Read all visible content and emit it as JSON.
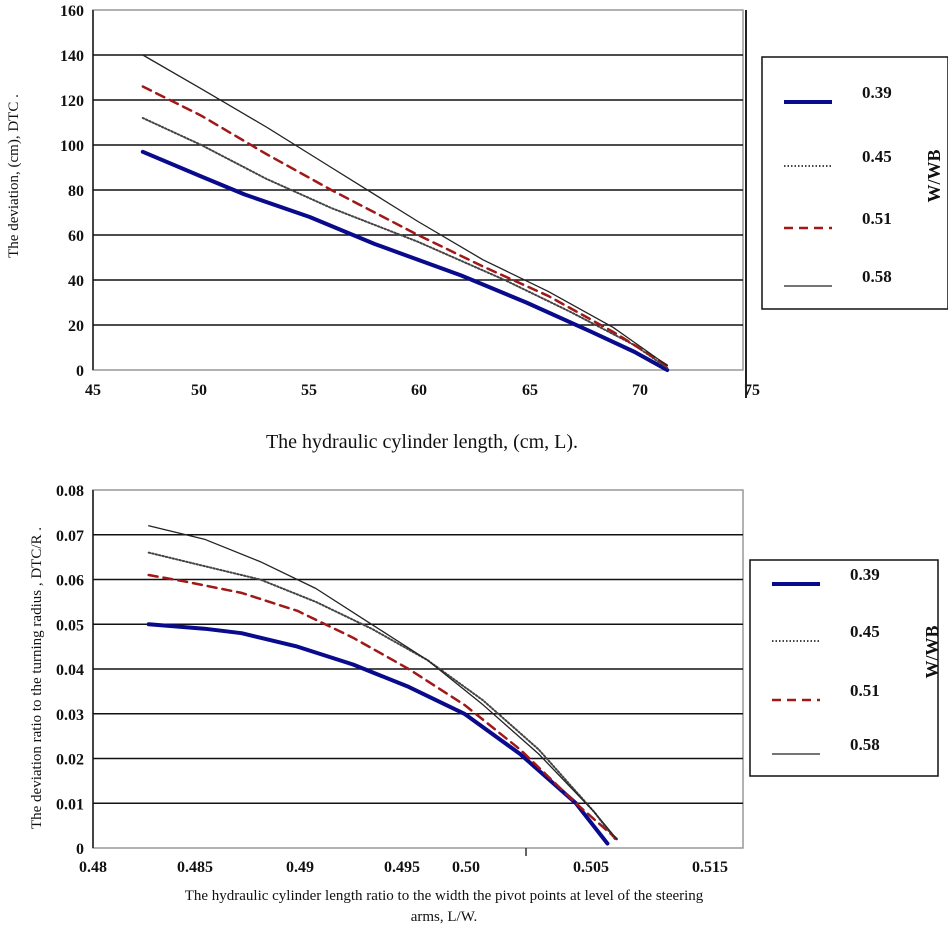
{
  "chart_data": [
    {
      "type": "line",
      "title": "",
      "xlabel": "The hydraulic cylinder length,  (cm, L).",
      "ylabel": "The deviation,  (cm), DTC .",
      "xlim": [
        45,
        75
      ],
      "ylim": [
        0,
        160
      ],
      "x_ticks": [
        "45",
        "50",
        "55",
        "60",
        "65",
        "70",
        "75"
      ],
      "y_ticks": [
        "0",
        "20",
        "40",
        "60",
        "80",
        "100",
        "120",
        "140",
        "160"
      ],
      "grid": "horizontal",
      "legend_title": "W/WB",
      "legend_position": "right",
      "series": [
        {
          "name": "0.39",
          "color": "#0a0a8c",
          "style": "solid-thick",
          "x": [
            47.3,
            50,
            52,
            55,
            58,
            62,
            65,
            68,
            70,
            71.5
          ],
          "y": [
            97,
            86,
            78,
            68,
            56,
            42,
            30,
            17,
            8,
            0
          ]
        },
        {
          "name": "0.45",
          "color": "#444444",
          "style": "dotted",
          "x": [
            47.3,
            50,
            53,
            56,
            60,
            64,
            67,
            70,
            71.5
          ],
          "y": [
            112,
            100,
            85,
            72,
            57,
            40,
            26,
            11,
            1
          ]
        },
        {
          "name": "0.51",
          "color": "#a01818",
          "style": "dashed",
          "x": [
            47.3,
            50,
            53,
            56,
            60,
            63,
            66,
            69,
            71.5
          ],
          "y": [
            126,
            113,
            96,
            80,
            60,
            46,
            33,
            17,
            2
          ]
        },
        {
          "name": "0.58",
          "color": "#222222",
          "style": "solid-thin",
          "x": [
            47.3,
            50,
            53,
            56,
            60,
            63,
            66,
            69,
            71.5
          ],
          "y": [
            140,
            125,
            108,
            90,
            66,
            49,
            35,
            19,
            2
          ]
        }
      ]
    },
    {
      "type": "line",
      "title": "",
      "xlabel": "The hydraulic cylinder length ratio to the width the pivot points at  level of the steering arms, L/W.",
      "ylabel": "The deviation ratio to the turning radius , DTC/R .",
      "xlim": [
        0.48,
        0.515
      ],
      "ylim": [
        0,
        0.08
      ],
      "x_ticks": [
        "0.48",
        "0.485",
        "0.49",
        "0.495",
        "0.50",
        "0.505",
        "0.515"
      ],
      "y_ticks": [
        "0",
        "0.01",
        "0.02",
        "0.03",
        "0.04",
        "0.05",
        "0.06",
        "0.07",
        "0.08"
      ],
      "grid": "horizontal",
      "legend_title": "W/WB",
      "legend_position": "right",
      "series": [
        {
          "name": "0.39",
          "color": "#0a0a8c",
          "style": "solid-thick",
          "x": [
            0.483,
            0.486,
            0.488,
            0.491,
            0.494,
            0.497,
            0.5,
            0.503,
            0.506,
            0.5077
          ],
          "y": [
            0.05,
            0.049,
            0.048,
            0.045,
            0.041,
            0.036,
            0.03,
            0.021,
            0.01,
            0.001
          ]
        },
        {
          "name": "0.45",
          "color": "#444444",
          "style": "dotted",
          "x": [
            0.483,
            0.486,
            0.489,
            0.492,
            0.495,
            0.498,
            0.501,
            0.504,
            0.507,
            0.5081
          ],
          "y": [
            0.066,
            0.063,
            0.06,
            0.055,
            0.049,
            0.042,
            0.033,
            0.022,
            0.008,
            0.002
          ]
        },
        {
          "name": "0.51",
          "color": "#a01818",
          "style": "dashed",
          "x": [
            0.483,
            0.485,
            0.488,
            0.491,
            0.494,
            0.497,
            0.5,
            0.503,
            0.506,
            0.5082
          ],
          "y": [
            0.061,
            0.0595,
            0.057,
            0.053,
            0.047,
            0.04,
            0.032,
            0.022,
            0.01,
            0.002
          ]
        },
        {
          "name": "0.58",
          "color": "#222222",
          "style": "solid-thin",
          "x": [
            0.483,
            0.486,
            0.489,
            0.492,
            0.495,
            0.498,
            0.501,
            0.504,
            0.507,
            0.5082
          ],
          "y": [
            0.072,
            0.069,
            0.064,
            0.058,
            0.05,
            0.042,
            0.032,
            0.021,
            0.008,
            0.002
          ]
        }
      ]
    }
  ]
}
